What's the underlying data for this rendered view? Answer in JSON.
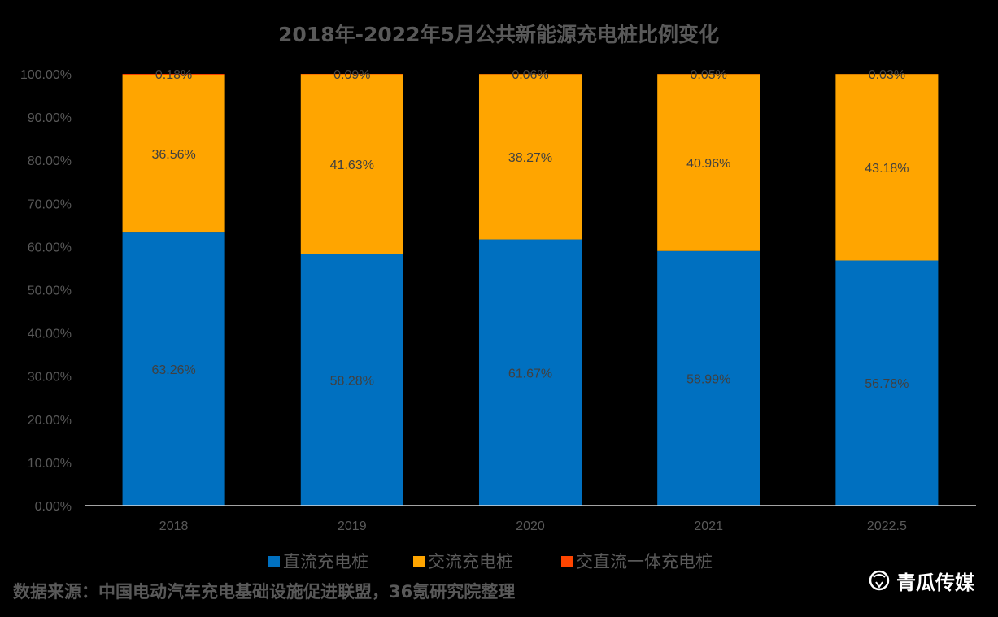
{
  "chart_data": {
    "type": "bar",
    "stacked": true,
    "title": "2018年-2022年5月公共新能源充电桩比例变化",
    "categories": [
      "2018",
      "2019",
      "2020",
      "2021",
      "2022.5"
    ],
    "series": [
      {
        "name": "直流充电桩",
        "color": "#0070C0",
        "values": [
          63.26,
          58.28,
          61.67,
          58.99,
          56.78
        ],
        "labels": [
          "63.26%",
          "58.28%",
          "61.67%",
          "58.99%",
          "56.78%"
        ]
      },
      {
        "name": "交流充电桩",
        "color": "#FFA500",
        "values": [
          36.56,
          41.63,
          38.27,
          40.96,
          43.18
        ],
        "labels": [
          "36.56%",
          "41.63%",
          "38.27%",
          "40.96%",
          "43.18%"
        ]
      },
      {
        "name": "交直流一体充电桩",
        "color": "#FF4500",
        "values": [
          0.18,
          0.09,
          0.06,
          0.05,
          0.03
        ],
        "labels": [
          "0.18%",
          "0.09%",
          "0.06%",
          "0.05%",
          "0.03%"
        ]
      }
    ],
    "yticks": [
      "0.00%",
      "10.00%",
      "20.00%",
      "30.00%",
      "40.00%",
      "50.00%",
      "60.00%",
      "70.00%",
      "80.00%",
      "90.00%",
      "100.00%"
    ],
    "ylim": [
      0,
      100
    ],
    "grid": false,
    "legend_position": "bottom"
  },
  "source": "数据来源：中国电动汽车充电基础设施促进联盟，36氪研究院整理",
  "brand": {
    "name": "青瓜传媒",
    "icon": "melon-logo-icon"
  }
}
